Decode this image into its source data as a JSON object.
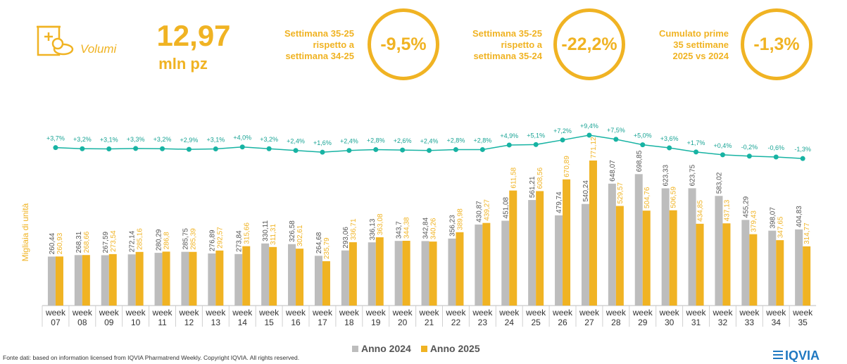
{
  "header": {
    "volumes_label": "Volumi",
    "total_value": "12,97",
    "total_unit": "mln pz",
    "kpis": [
      {
        "line1": "Settimana 35-25",
        "line2": "rispetto a",
        "line3": "settimana 34-25",
        "value": "-9,5%"
      },
      {
        "line1": "Settimana 35-25",
        "line2": "rispetto a",
        "line3": "settimana 35-24",
        "value": "-22,2%"
      },
      {
        "line1": "Cumulato prime",
        "line2": "35 settimane",
        "line3": "2025 vs 2024",
        "value": "-1,3%"
      }
    ]
  },
  "colors": {
    "accent": "#f0b323",
    "series_2024": "#bdbdbd",
    "series_2025": "#f0b323",
    "growth_line": "#17b3a3"
  },
  "chart_data": {
    "type": "bar",
    "ylabel": "Migliaia di unità",
    "categories": [
      "week 07",
      "week 08",
      "week 09",
      "week 10",
      "week 11",
      "week 12",
      "week 13",
      "week 14",
      "week 15",
      "week 16",
      "week 17",
      "week 18",
      "week 19",
      "week 20",
      "week 21",
      "week 22",
      "week 23",
      "week 24",
      "week 25",
      "week 26",
      "week 27",
      "week 28",
      "week 29",
      "week 30",
      "week 31",
      "week 32",
      "week 33",
      "week 34",
      "week 35"
    ],
    "series": [
      {
        "name": "Anno 2024",
        "values": [
          "260,44",
          "268,31",
          "267,59",
          "272,14",
          "280,29",
          "285,75",
          "276,89",
          "273,84",
          "330,11",
          "326,58",
          "264,68",
          "293,06",
          "336,13",
          "343,7",
          "342,84",
          "356,23",
          "430,87",
          "451,08",
          "561,21",
          "479,74",
          "540,24",
          "648,07",
          "698,85",
          "623,33",
          "623,75",
          "583,02",
          "455,29",
          "398,07",
          "404,83"
        ]
      },
      {
        "name": "Anno 2025",
        "values": [
          "260,93",
          "268,66",
          "273,54",
          "285,16",
          "286,8",
          "285,39",
          "292,57",
          "315,66",
          "311,31",
          "302,61",
          "235,79",
          "336,71",
          "363,08",
          "344,38",
          "340,26",
          "389,98",
          "439,27",
          "611,58",
          "608,56",
          "670,89",
          "771,12",
          "529,57",
          "504,76",
          "506,59",
          "434,85",
          "437,13",
          "379,43",
          "347,65",
          "314,77"
        ]
      }
    ],
    "growth": {
      "labels": [
        "+3,7%",
        "+3,2%",
        "+3,1%",
        "+3,3%",
        "+3,2%",
        "+2,9%",
        "+3,1%",
        "+4,0%",
        "+3,2%",
        "+2,4%",
        "+1,6%",
        "+2,4%",
        "+2,8%",
        "+2,6%",
        "+2,4%",
        "+2,8%",
        "+2,8%",
        "+4,9%",
        "+5,1%",
        "+7,2%",
        "+9,4%",
        "+7,5%",
        "+5,0%",
        "+3,6%",
        "+1,7%",
        "+0,4%",
        "-0,2%",
        "-0,6%",
        "-1,3%"
      ],
      "values": [
        3.7,
        3.2,
        3.1,
        3.3,
        3.2,
        2.9,
        3.1,
        4.0,
        3.2,
        2.4,
        1.6,
        2.4,
        2.8,
        2.6,
        2.4,
        2.8,
        2.8,
        4.9,
        5.1,
        7.2,
        9.4,
        7.5,
        5.0,
        3.6,
        1.7,
        0.4,
        -0.2,
        -0.6,
        -1.3
      ]
    },
    "legend": [
      "Anno 2024",
      "Anno 2025"
    ]
  },
  "footer": {
    "source": "Fonte dati: based on information licensed from IQVIA Pharmatrend Weekly. Copyright IQVIA. All rights reserved.",
    "logo_text": "IQVIA"
  }
}
